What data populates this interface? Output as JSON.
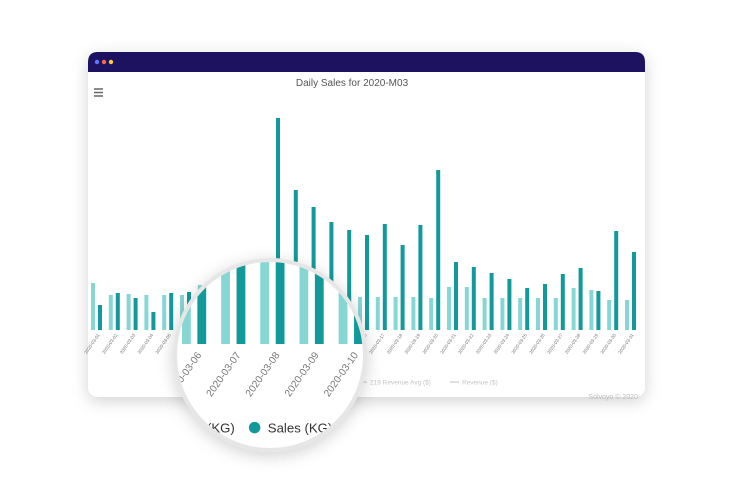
{
  "chart_data": {
    "type": "bar",
    "title": "Daily Sales for 2020-M03",
    "categories": [
      "2020-03-01",
      "2020-03-02",
      "2020-03-03",
      "2020-03-04",
      "2020-03-05",
      "2020-03-06",
      "2020-03-07",
      "2020-03-08",
      "2020-03-09",
      "2020-03-10",
      "2020-03-11",
      "2020-03-12",
      "2020-03-13",
      "2020-03-14",
      "2020-03-15",
      "2020-03-16",
      "2020-03-17",
      "2020-03-18",
      "2020-03-19",
      "2020-03-20",
      "2020-03-21",
      "2020-03-22",
      "2020-03-23",
      "2020-03-24",
      "2020-03-25",
      "2020-03-26",
      "2020-03-27",
      "2020-03-28",
      "2020-03-29",
      "2020-03-30",
      "2020-03-31"
    ],
    "series": [
      {
        "name": "(KG)",
        "color": "#86d6d4",
        "values": [
          47,
          35,
          36,
          35,
          35,
          35,
          45,
          40,
          40,
          40,
          33,
          33,
          33,
          33,
          33,
          33,
          33,
          33,
          33,
          32,
          43,
          43,
          32,
          32,
          32,
          32,
          32,
          42,
          40,
          30,
          30
        ]
      },
      {
        "name": "Sales (KG)",
        "color": "#129a9a",
        "values": [
          25,
          37,
          32,
          18,
          37,
          38,
          40,
          55,
          60,
          65,
          212,
          140,
          123,
          108,
          100,
          95,
          106,
          85,
          105,
          160,
          68,
          63,
          57,
          51,
          42,
          46,
          56,
          62,
          39,
          99,
          78
        ]
      }
    ],
    "background_legend": [
      "219 Revenue Avg ($)",
      "Revenue ($)"
    ],
    "credit": "Solvoyo © 2020"
  }
}
